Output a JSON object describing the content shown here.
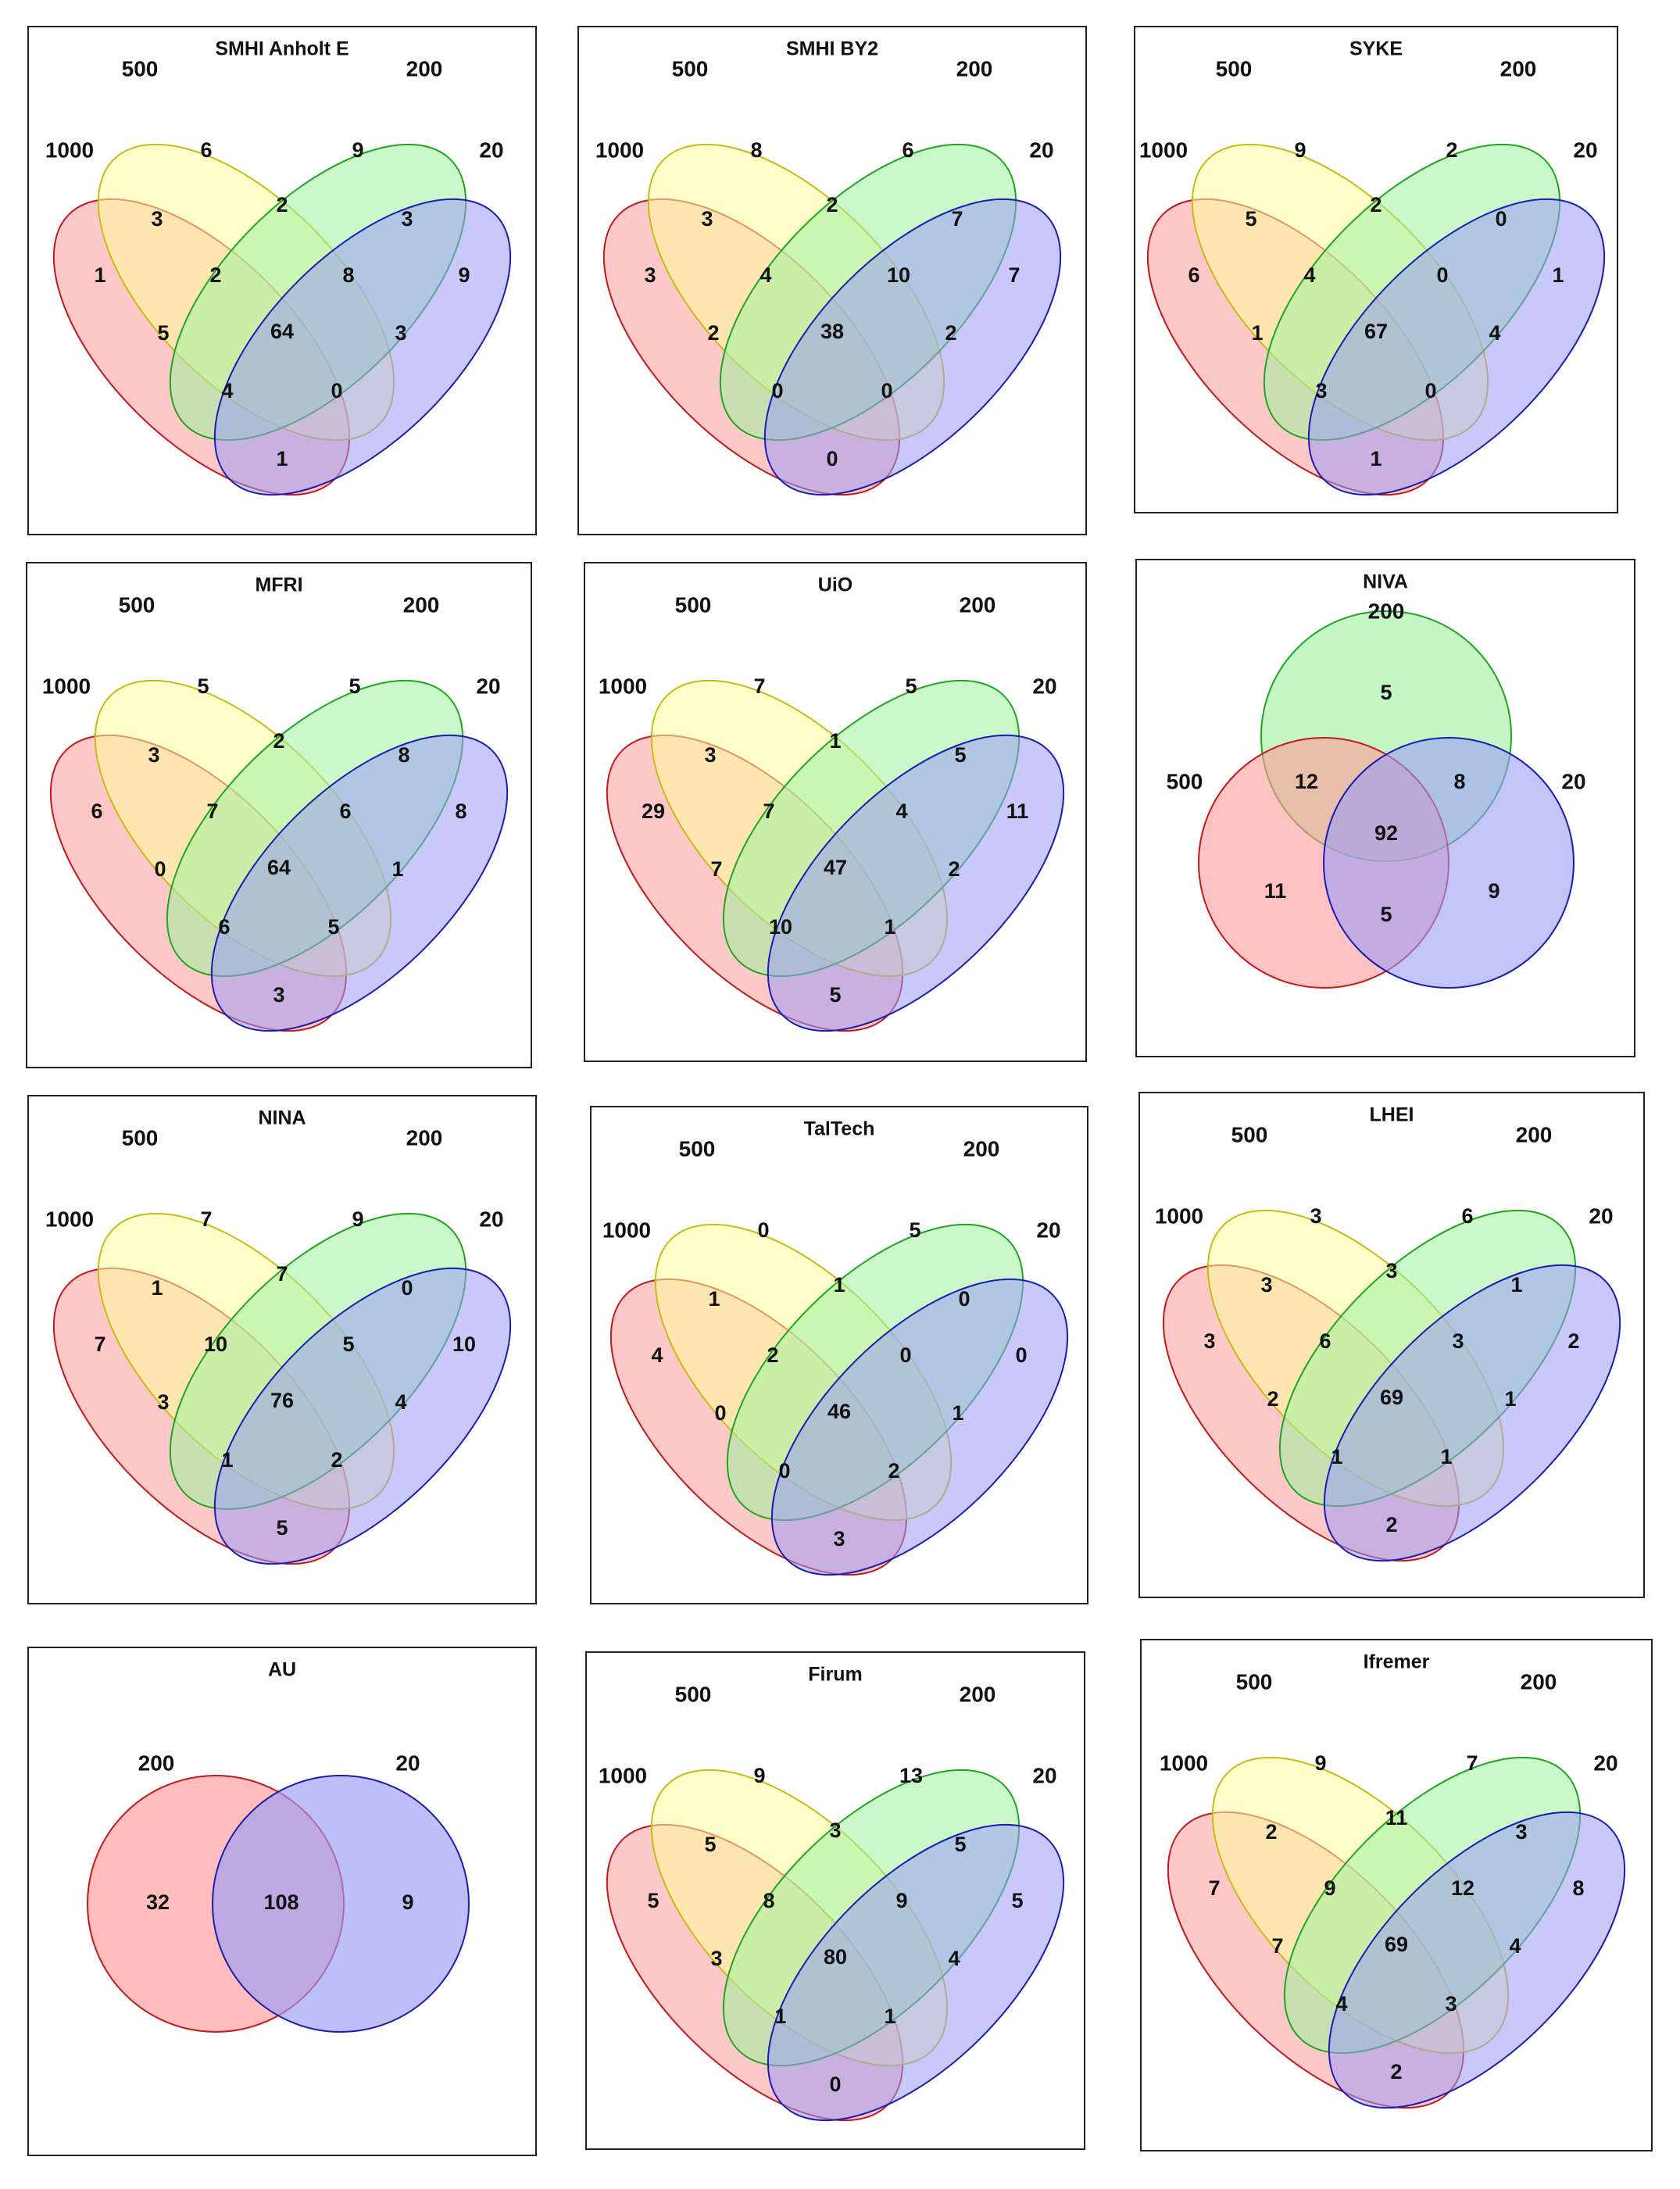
{
  "set_colors": {
    "1000": {
      "fill": "#ff9a9a",
      "stroke": "#c21a1a"
    },
    "500": {
      "fill": "#ffff9e",
      "stroke": "#c8bb16"
    },
    "200": {
      "fill": "#9ff29f",
      "stroke": "#1fa61f"
    },
    "20": {
      "fill": "#9b9cf6",
      "stroke": "#1c1cb0"
    }
  },
  "panels": [
    {
      "title": "SMHI Anholt E",
      "type": "venn4",
      "set_labels": [
        "1000",
        "500",
        "200",
        "20"
      ],
      "regions": {
        "A": "1",
        "B": "6",
        "C": "9",
        "D": "9",
        "AB": "3",
        "BC": "2",
        "CD": "3",
        "AC": "5",
        "BD": "3",
        "AD": "1",
        "ABC": "2",
        "BCD": "8",
        "ACD": "4",
        "ABD": "0",
        "ABCD": "64"
      }
    },
    {
      "title": "SMHI BY2",
      "type": "venn4",
      "set_labels": [
        "1000",
        "500",
        "200",
        "20"
      ],
      "regions": {
        "A": "3",
        "B": "8",
        "C": "6",
        "D": "7",
        "AB": "3",
        "BC": "2",
        "CD": "7",
        "AC": "2",
        "BD": "2",
        "AD": "0",
        "ABC": "4",
        "BCD": "10",
        "ACD": "0",
        "ABD": "0",
        "ABCD": "38"
      }
    },
    {
      "title": "SYKE",
      "type": "venn4",
      "set_labels": [
        "1000",
        "500",
        "200",
        "20"
      ],
      "regions": {
        "A": "6",
        "B": "9",
        "C": "2",
        "D": "1",
        "AB": "5",
        "BC": "2",
        "CD": "0",
        "AC": "1",
        "BD": "4",
        "AD": "1",
        "ABC": "4",
        "BCD": "0",
        "ACD": "3",
        "ABD": "0",
        "ABCD": "67"
      }
    },
    {
      "title": "MFRI",
      "type": "venn4",
      "set_labels": [
        "1000",
        "500",
        "200",
        "20"
      ],
      "regions": {
        "A": "6",
        "B": "5",
        "C": "5",
        "D": "8",
        "AB": "3",
        "BC": "2",
        "CD": "8",
        "AC": "0",
        "BD": "1",
        "AD": "3",
        "ABC": "7",
        "BCD": "6",
        "ACD": "6",
        "ABD": "5",
        "ABCD": "64"
      }
    },
    {
      "title": "UiO",
      "type": "venn4",
      "set_labels": [
        "1000",
        "500",
        "200",
        "20"
      ],
      "regions": {
        "A": "29",
        "B": "7",
        "C": "5",
        "D": "11",
        "AB": "3",
        "BC": "1",
        "CD": "5",
        "AC": "7",
        "BD": "2",
        "AD": "5",
        "ABC": "7",
        "BCD": "4",
        "ACD": "10",
        "ABD": "1",
        "ABCD": "47"
      }
    },
    {
      "title": "NIVA",
      "type": "venn3",
      "set_labels": [
        "200",
        "500",
        "20"
      ],
      "regions": {
        "top": "5",
        "left": "11",
        "right": "9",
        "top_left": "12",
        "top_right": "8",
        "left_right": "5",
        "center": "92"
      }
    },
    {
      "title": "NINA",
      "type": "venn4",
      "set_labels": [
        "1000",
        "500",
        "200",
        "20"
      ],
      "regions": {
        "A": "7",
        "B": "7",
        "C": "9",
        "D": "10",
        "AB": "1",
        "BC": "7",
        "CD": "0",
        "AC": "3",
        "BD": "4",
        "AD": "5",
        "ABC": "10",
        "BCD": "5",
        "ACD": "1",
        "ABD": "2",
        "ABCD": "76"
      }
    },
    {
      "title": "TalTech",
      "type": "venn4",
      "set_labels": [
        "1000",
        "500",
        "200",
        "20"
      ],
      "regions": {
        "A": "4",
        "B": "0",
        "C": "5",
        "D": "0",
        "AB": "1",
        "BC": "1",
        "CD": "0",
        "AC": "0",
        "BD": "1",
        "AD": "3",
        "ABC": "2",
        "BCD": "0",
        "ACD": "0",
        "ABD": "2",
        "ABCD": "46"
      }
    },
    {
      "title": "LHEI",
      "type": "venn4",
      "set_labels": [
        "1000",
        "500",
        "200",
        "20"
      ],
      "regions": {
        "A": "3",
        "B": "3",
        "C": "6",
        "D": "2",
        "AB": "3",
        "BC": "3",
        "CD": "1",
        "AC": "2",
        "BD": "1",
        "AD": "2",
        "ABC": "6",
        "BCD": "3",
        "ACD": "1",
        "ABD": "1",
        "ABCD": "69"
      }
    },
    {
      "title": "AU",
      "type": "venn2",
      "set_labels": [
        "200",
        "20"
      ],
      "regions": {
        "left": "32",
        "both": "108",
        "right": "9"
      }
    },
    {
      "title": "Firum",
      "type": "venn4",
      "set_labels": [
        "1000",
        "500",
        "200",
        "20"
      ],
      "regions": {
        "A": "5",
        "B": "9",
        "C": "13",
        "D": "5",
        "AB": "5",
        "BC": "3",
        "CD": "5",
        "AC": "3",
        "BD": "4",
        "AD": "0",
        "ABC": "8",
        "BCD": "9",
        "ACD": "1",
        "ABD": "1",
        "ABCD": "80"
      }
    },
    {
      "title": "Ifremer",
      "type": "venn4",
      "set_labels": [
        "1000",
        "500",
        "200",
        "20"
      ],
      "regions": {
        "A": "7",
        "B": "9",
        "C": "7",
        "D": "8",
        "AB": "2",
        "BC": "11",
        "CD": "3",
        "AC": "7",
        "BD": "4",
        "AD": "2",
        "ABC": "9",
        "BCD": "12",
        "ACD": "4",
        "ABD": "3",
        "ABCD": "69"
      }
    }
  ]
}
